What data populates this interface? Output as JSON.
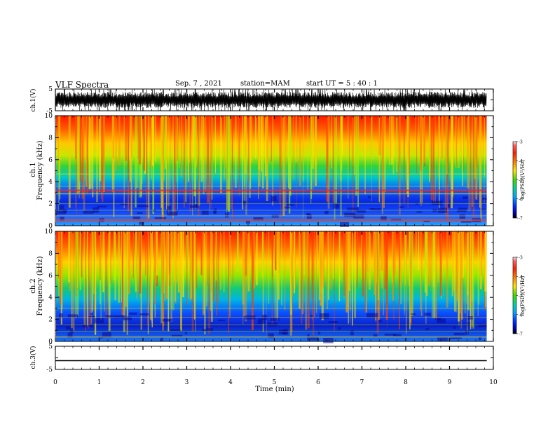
{
  "header": {
    "title": "VLF Spectra",
    "date": "Sep. 7 , 2021",
    "station": "station=MAM",
    "start": "start  UT  =   5  : 40 : 1"
  },
  "chart_data": [
    {
      "type": "line",
      "name": "ch1-waveform",
      "ylabel": "ch.1(V)",
      "yticks": [
        "5",
        "-5"
      ],
      "ylim": [
        -5,
        5
      ],
      "xlim": [
        0,
        10
      ]
    },
    {
      "type": "heatmap",
      "name": "ch1-spectrogram",
      "ylabel_top": "ch.1",
      "ylabel": "Frequency  (kHz)",
      "yticks": [
        "0",
        "2",
        "4",
        "6",
        "8",
        "10"
      ],
      "ylim": [
        0,
        10
      ],
      "xlim": [
        0,
        9.85
      ],
      "colorbar": {
        "label": "log(PSD)(V²/Hz)",
        "ticks": [
          "-3",
          "-4",
          "-5",
          "-6",
          "-7"
        ],
        "range": [
          -7,
          -3
        ]
      }
    },
    {
      "type": "heatmap",
      "name": "ch2-spectrogram",
      "ylabel_top": "ch.2",
      "ylabel": "Frequency  (kHz)",
      "yticks": [
        "0",
        "2",
        "4",
        "6",
        "8",
        "10"
      ],
      "ylim": [
        0,
        10
      ],
      "xlim": [
        0,
        9.85
      ],
      "colorbar": {
        "label": "log(PSD)(V²/Hz)",
        "ticks": [
          "-3",
          "-4",
          "-5",
          "-6",
          "-7"
        ],
        "range": [
          -7,
          -3
        ]
      }
    },
    {
      "type": "line",
      "name": "ch3-waveform",
      "ylabel": "ch.3(V)",
      "yticks": [
        "5",
        "-5"
      ],
      "ylim": [
        -5,
        5
      ],
      "x": [
        0,
        9.85
      ],
      "y": [
        -1.2,
        -1.2
      ],
      "xlabel": "Time  (min)",
      "xticks": [
        "0",
        "1",
        "2",
        "3",
        "4",
        "5",
        "6",
        "7",
        "8",
        "9",
        "10"
      ],
      "xlim": [
        0,
        10
      ]
    }
  ]
}
